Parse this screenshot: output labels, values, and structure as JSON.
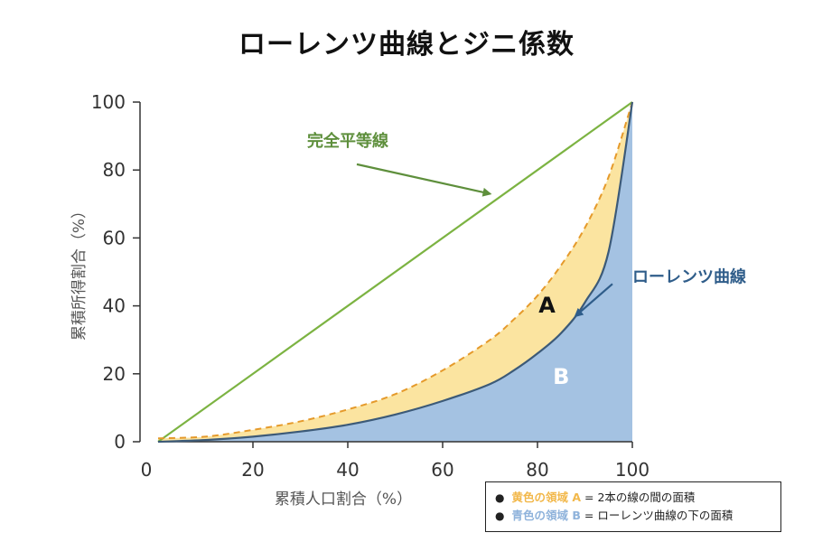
{
  "title": "ローレンツ曲線とジニ係数",
  "chart_data": {
    "type": "line",
    "xlabel": "累積人口割合（%）",
    "ylabel": "累積所得割合（%）",
    "xlim": [
      0,
      100
    ],
    "ylim": [
      0,
      100
    ],
    "x_ticks": [
      "0",
      "20",
      "40",
      "60",
      "80",
      "100"
    ],
    "y_ticks": [
      "0",
      "20",
      "40",
      "60",
      "80",
      "100"
    ],
    "grid": false,
    "series": [
      {
        "name": "完全平等線",
        "x": [
          0,
          100
        ],
        "y": [
          0,
          100
        ]
      },
      {
        "name": "ローレンツ曲線",
        "x": [
          0,
          10,
          20,
          30,
          40,
          50,
          60,
          70,
          75,
          80,
          85,
          90,
          95,
          100
        ],
        "y": [
          0,
          0.5,
          1.5,
          3,
          5,
          8,
          12,
          17,
          21,
          26,
          32,
          41,
          56,
          100
        ]
      },
      {
        "name": "",
        "x": [
          0,
          10,
          20,
          30,
          40,
          50,
          60,
          70,
          75,
          80,
          85,
          90,
          95,
          100
        ],
        "y": [
          1,
          1.5,
          3.5,
          6,
          9.5,
          14,
          21,
          30,
          36,
          43,
          52,
          63,
          78,
          100
        ]
      }
    ],
    "region_labels": [
      {
        "label": "A",
        "x": 82,
        "y": 38,
        "color": "#111111"
      },
      {
        "label": "B",
        "x": 85,
        "y": 17,
        "color": "#ffffff"
      }
    ],
    "annotations": [
      {
        "text": "完全平等線",
        "color": "#5e8f3c",
        "text_xy": [
          40,
          87
        ],
        "arrow_to": [
          70,
          73
        ]
      },
      {
        "text": "ローレンツ曲線",
        "color": "#2f5d8a",
        "text_xy": [
          112,
          47
        ],
        "arrow_to": [
          88,
          37
        ]
      }
    ],
    "colors": {
      "equality_line": "#7cb342",
      "lorenz_curve": "#3c5a78",
      "area_b": "#a4c2e2",
      "area_a": "#fbe4a0",
      "dashed_line": "#e59a2b"
    }
  },
  "legend": {
    "items": [
      {
        "highlight": "黄色の領域 A",
        "text": "= 2本の線の間の面積",
        "color": "#f2b84b"
      },
      {
        "highlight": "青色の領域 B",
        "text": "= ローレンツ曲線の下の面積",
        "color": "#8fb3db"
      }
    ]
  }
}
